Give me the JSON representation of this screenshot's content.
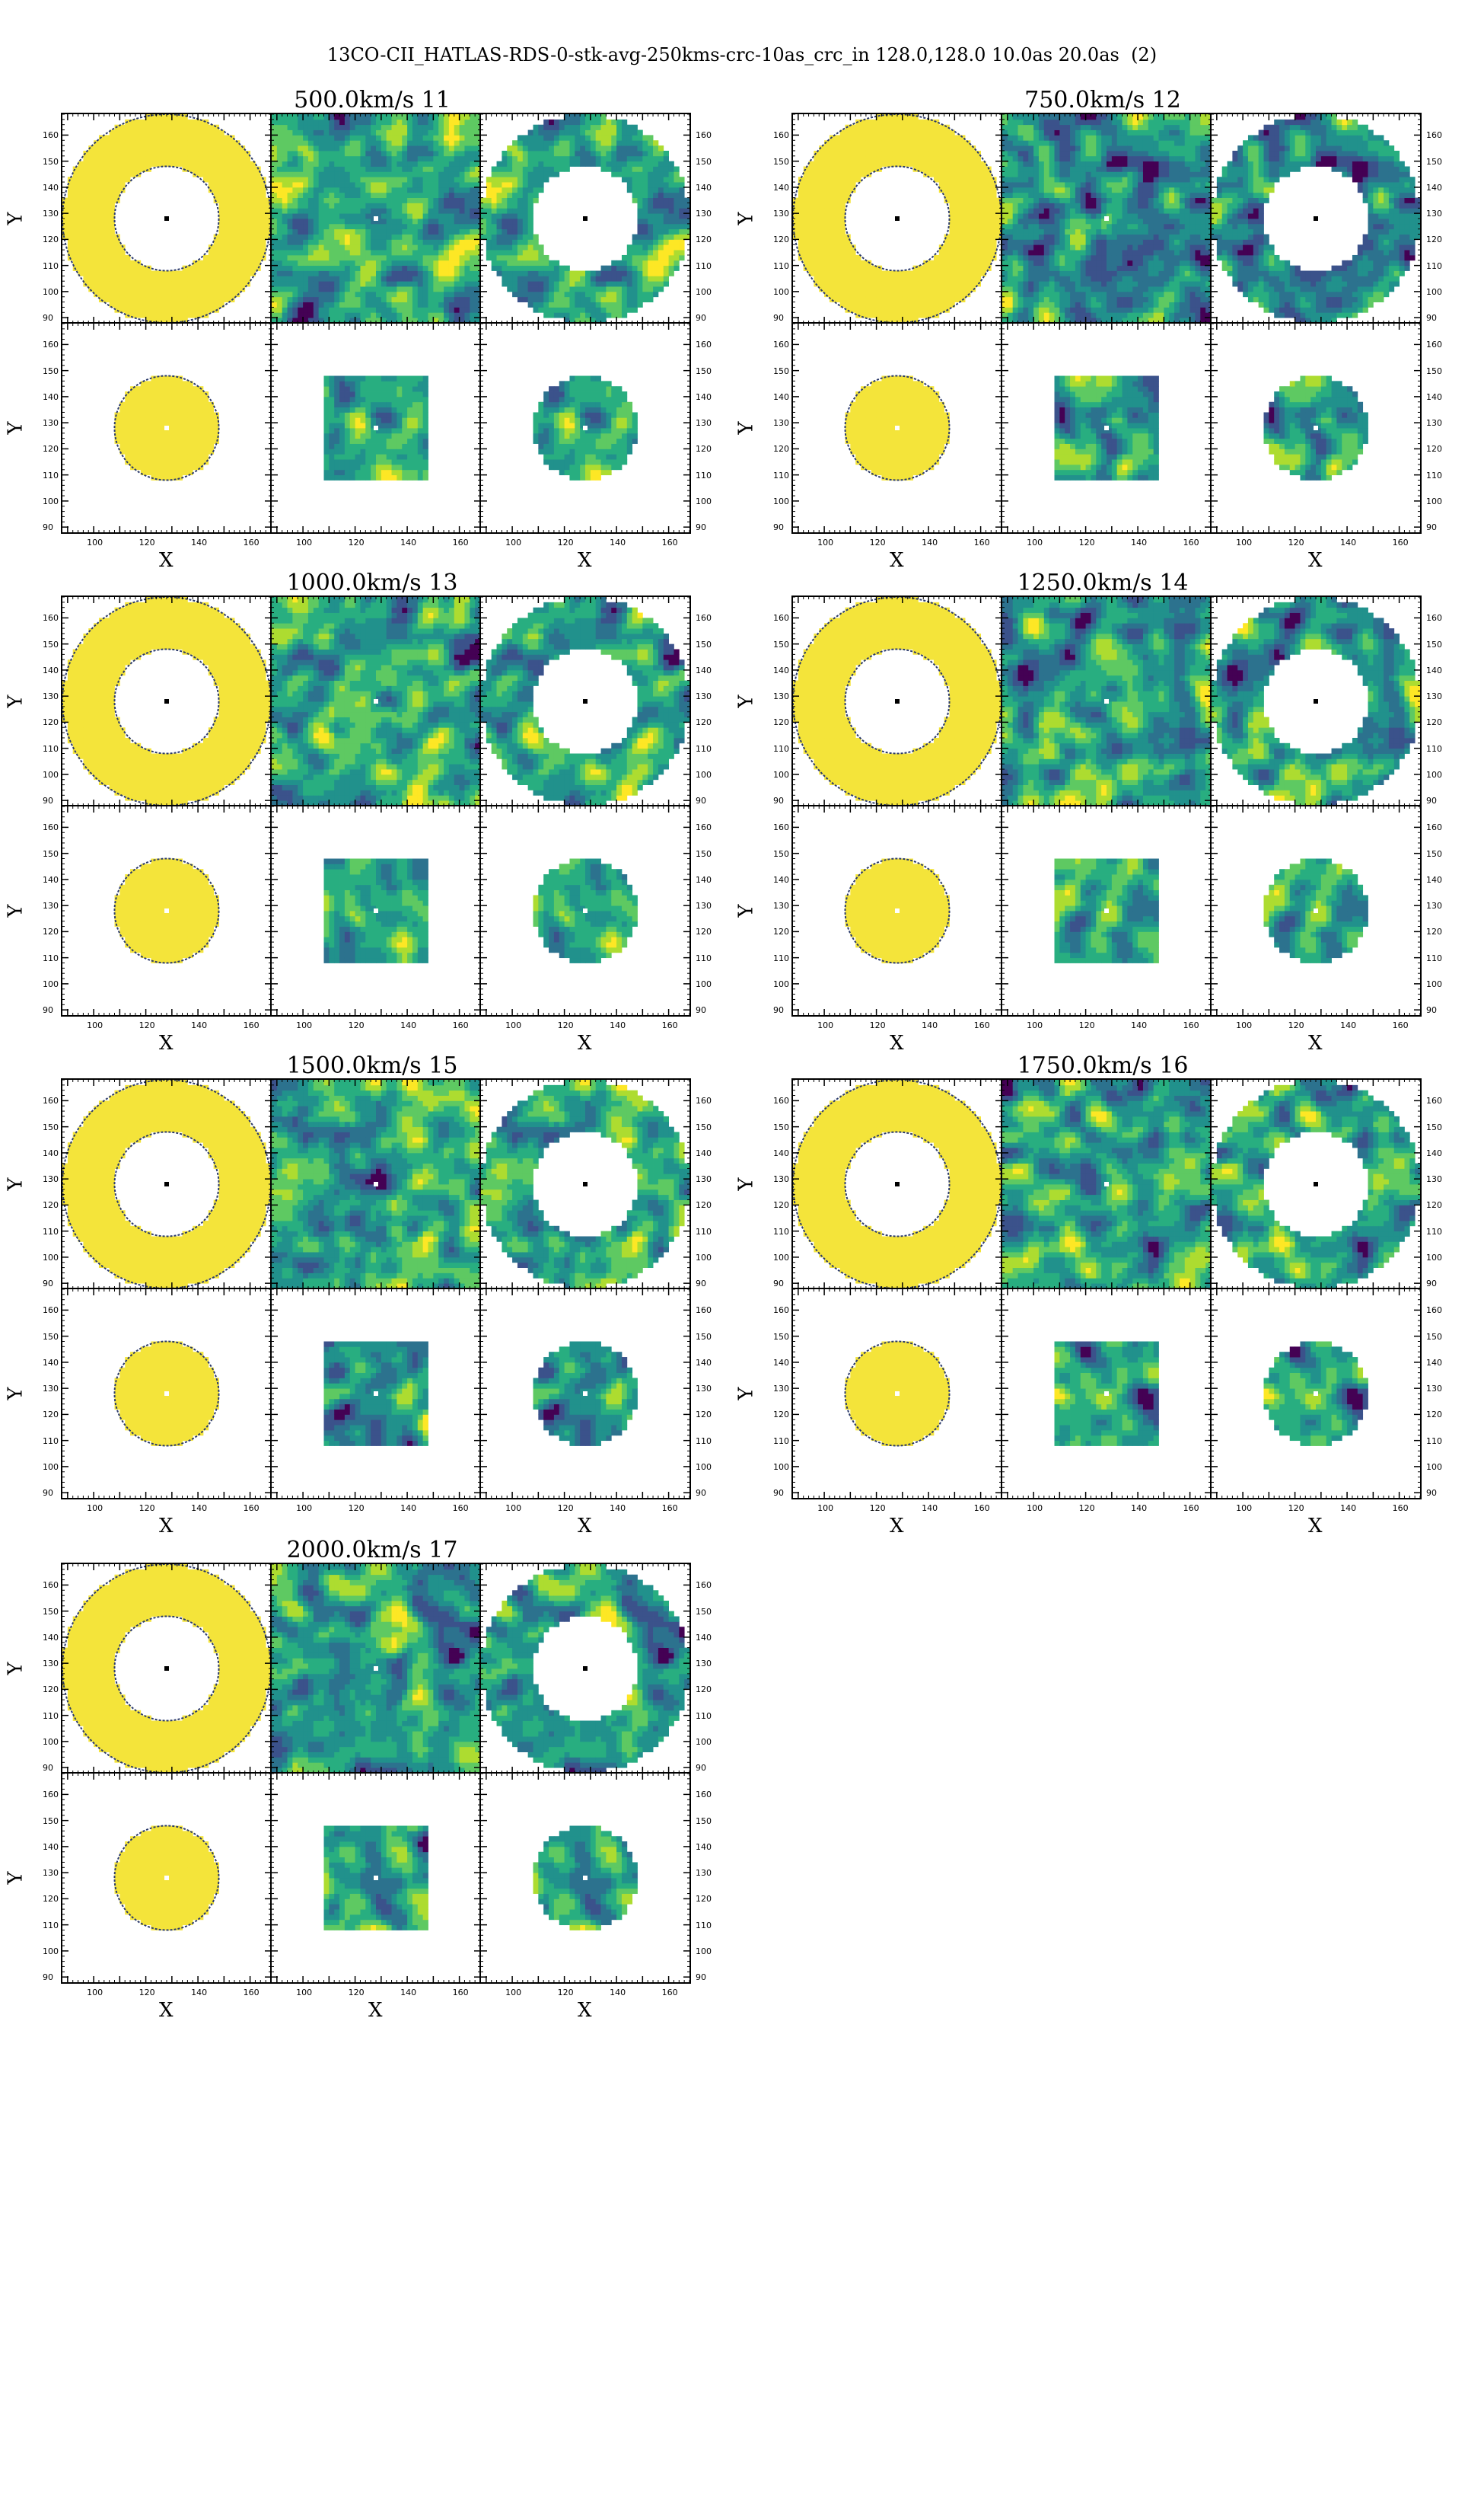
{
  "title": "13CO-CII_HATLAS-RDS-0-stk-avg-250kms-crc-10as_crc_in 128.0,128.0 10.0as 20.0as  (2)",
  "colors": {
    "yellow": "#f4e43a",
    "viridis": [
      "#440154",
      "#3b528b",
      "#2c728e",
      "#21918c",
      "#28ae80",
      "#5ec962",
      "#addc30",
      "#fde725"
    ]
  },
  "chart_data": {
    "type": "heatmap",
    "x_center": 128.0,
    "y_center": 128.0,
    "inner_radius": "10.0as",
    "outer_radius": "20.0as",
    "xlim": [
      88,
      168
    ],
    "ylim": [
      88,
      168
    ],
    "xticks": [
      100,
      120,
      140,
      160
    ],
    "yticks": [
      90,
      100,
      110,
      120,
      130,
      140,
      150,
      160
    ],
    "xlabel": "X",
    "ylabel": "Y",
    "ring_rows": {
      "inner_radius": 20,
      "outer_radius": 40
    },
    "core_rows": {
      "aperture_radius": 20,
      "box_half_width": 20
    },
    "groups": [
      {
        "label": "500.0km/s 11",
        "velocity_kms": 500.0,
        "channel": 11,
        "seed": 11
      },
      {
        "label": "750.0km/s 12",
        "velocity_kms": 750.0,
        "channel": 12,
        "seed": 12
      },
      {
        "label": "1000.0km/s 13",
        "velocity_kms": 1000.0,
        "channel": 13,
        "seed": 13
      },
      {
        "label": "1250.0km/s 14",
        "velocity_kms": 1250.0,
        "channel": 14,
        "seed": 14
      },
      {
        "label": "1500.0km/s 15",
        "velocity_kms": 1500.0,
        "channel": 15,
        "seed": 15
      },
      {
        "label": "1750.0km/s 16",
        "velocity_kms": 1750.0,
        "channel": 16,
        "seed": 16
      },
      {
        "label": "2000.0km/s 17",
        "velocity_kms": 2000.0,
        "channel": 17,
        "seed": 17
      }
    ]
  }
}
